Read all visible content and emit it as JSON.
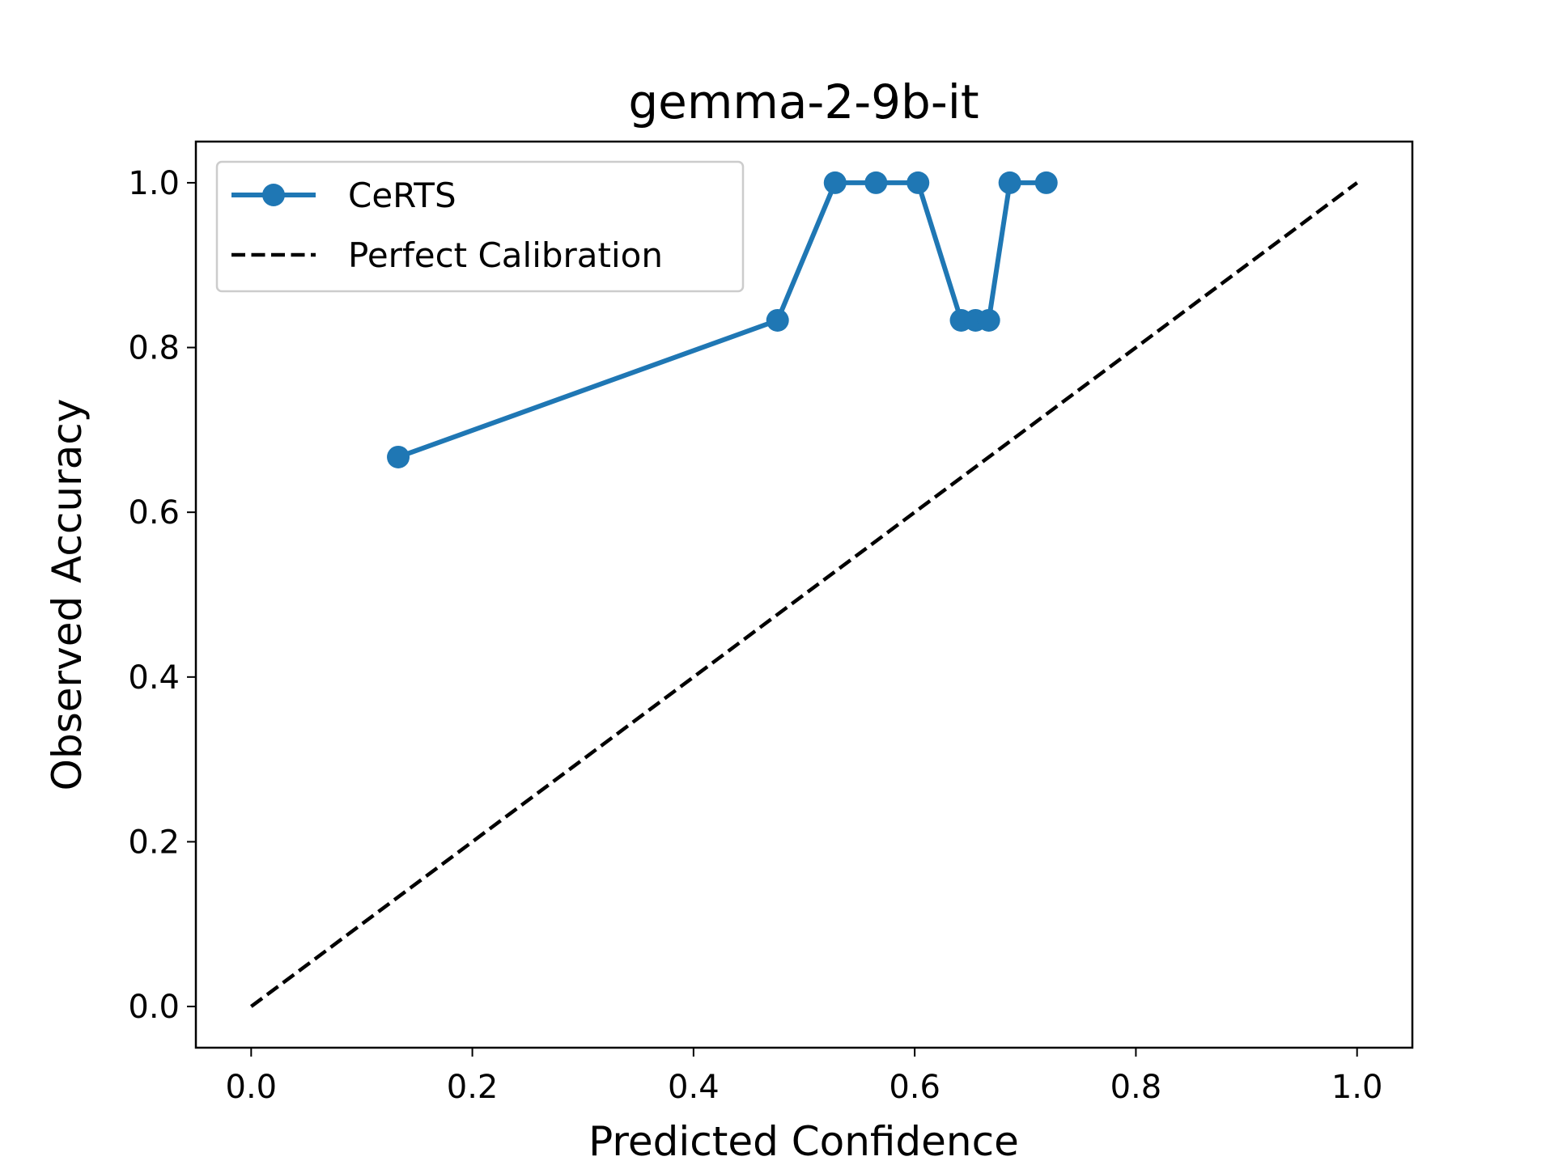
{
  "chart_data": {
    "type": "line",
    "title": "gemma-2-9b-it",
    "xlabel": "Predicted Confidence",
    "ylabel": "Observed Accuracy",
    "xlim": [
      -0.05,
      1.05
    ],
    "ylim": [
      -0.05,
      1.05
    ],
    "xticks": [
      "0.0",
      "0.2",
      "0.4",
      "0.6",
      "0.8",
      "1.0"
    ],
    "yticks": [
      "0.0",
      "0.2",
      "0.4",
      "0.6",
      "0.8",
      "1.0"
    ],
    "grid": false,
    "legend_position": "top-left",
    "series": [
      {
        "name": "CeRTS",
        "color": "#1f77b4",
        "style": "solid",
        "marker": "circle",
        "x": [
          0.133,
          0.476,
          0.528,
          0.565,
          0.603,
          0.642,
          0.655,
          0.667,
          0.686,
          0.719
        ],
        "y": [
          0.667,
          0.833,
          1.0,
          1.0,
          1.0,
          0.833,
          0.833,
          0.833,
          1.0,
          1.0
        ]
      },
      {
        "name": "Perfect Calibration",
        "color": "#000000",
        "style": "dashed",
        "marker": "none",
        "x": [
          0.0,
          1.0
        ],
        "y": [
          0.0,
          1.0
        ]
      }
    ]
  }
}
